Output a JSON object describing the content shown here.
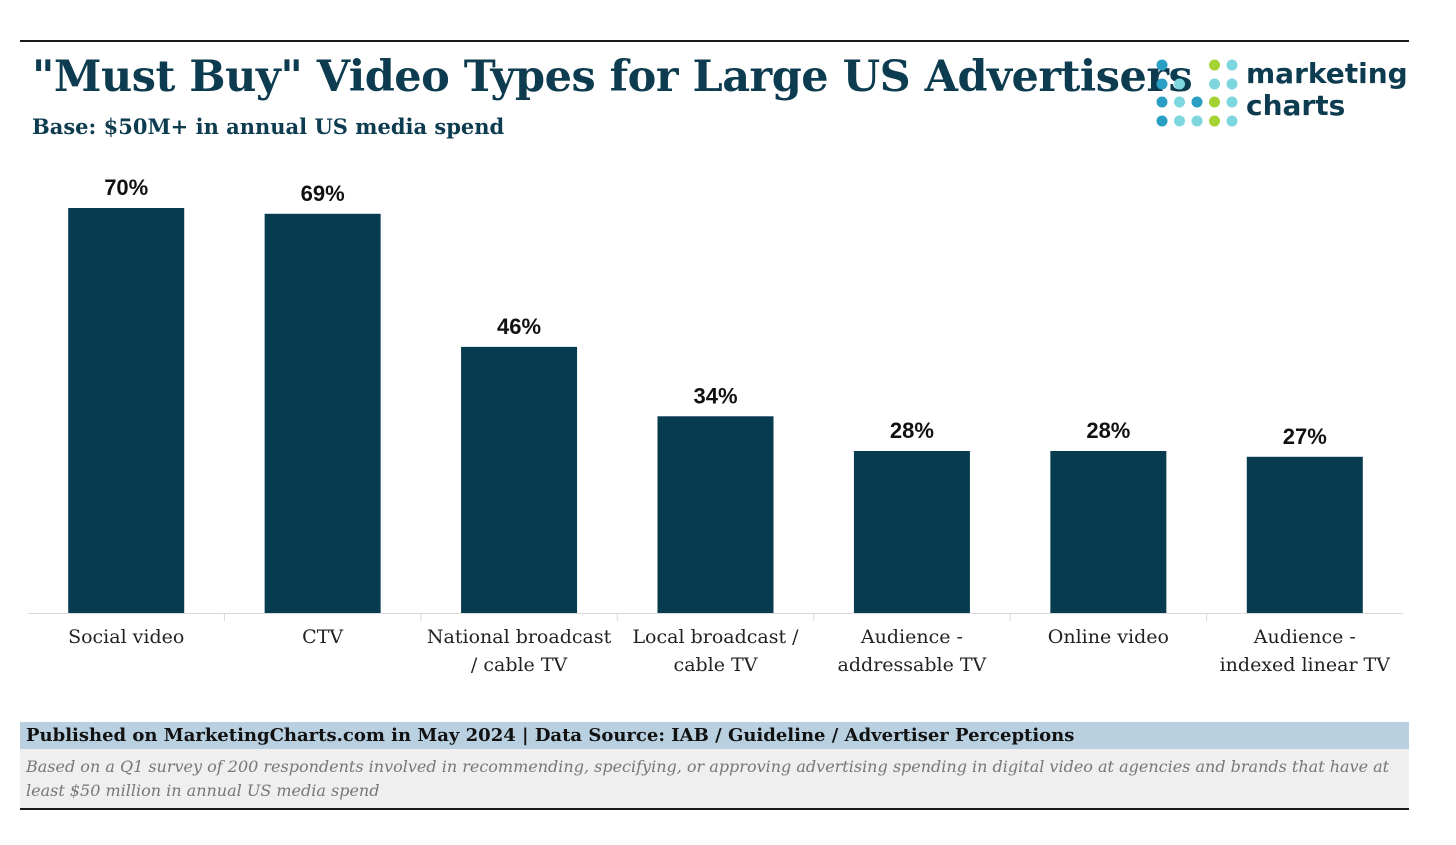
{
  "header": {
    "title": "\"Must Buy\" Video Types for Large US Advertisers",
    "subtitle": "Base: $50M+ in annual US media spend"
  },
  "logo": {
    "line1": "marketing",
    "line2": "charts",
    "dot_colors": [
      "#2a9fc4",
      "#7ed6df",
      "#a4d233"
    ]
  },
  "colors": {
    "bar": "#073b4f",
    "title": "#0d3b4f",
    "footer_band": "#b8d0e0"
  },
  "chart_data": {
    "type": "bar",
    "categories": [
      [
        "Social video"
      ],
      [
        "CTV"
      ],
      [
        "National broadcast",
        "/ cable TV"
      ],
      [
        "Local broadcast /",
        "cable TV"
      ],
      [
        "Audience -",
        "addressable TV"
      ],
      [
        "Online video"
      ],
      [
        "Audience -",
        "indexed linear TV"
      ]
    ],
    "values": [
      70,
      69,
      46,
      34,
      28,
      28,
      27
    ],
    "value_labels": [
      "70%",
      "69%",
      "46%",
      "34%",
      "28%",
      "28%",
      "27%"
    ],
    "unit": "%",
    "ylim": [
      0,
      70
    ],
    "grid": false,
    "legend": "none"
  },
  "footer": {
    "published": "Published on MarketingCharts.com in May 2024 | Data Source: IAB / Guideline / Advertiser Perceptions",
    "note": "Based on a Q1 survey of 200 respondents involved in recommending, specifying, or approving advertising spending in digital video at agencies and brands that have at least $50 million in annual US media spend"
  }
}
